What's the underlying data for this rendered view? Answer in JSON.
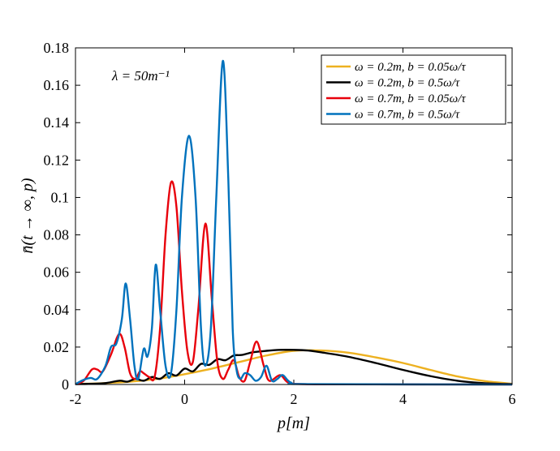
{
  "chart_data": {
    "type": "line",
    "title": "",
    "xlabel": "p[m]",
    "ylabel": "n̄(t → ∞, p)",
    "xlim": [
      -2,
      6
    ],
    "ylim": [
      0,
      0.18
    ],
    "xticks": [
      -2,
      0,
      2,
      4,
      6
    ],
    "xtick_labels": [
      "-2",
      "0",
      "2",
      "4",
      "6"
    ],
    "yticks": [
      0,
      0.02,
      0.04,
      0.06,
      0.08,
      0.1,
      0.12,
      0.14,
      0.16,
      0.18
    ],
    "ytick_labels": [
      "0",
      "0.02",
      "0.04",
      "0.06",
      "0.08",
      "0.1",
      "0.12",
      "0.14",
      "0.16",
      "0.18"
    ],
    "grid": false,
    "legend_position": "top-right",
    "annotation": "λ = 50m⁻¹",
    "series": [
      {
        "name": "ω = 0.2m, b = 0.05ω/τ",
        "color": "#EDB120",
        "points": [
          [
            -2,
            0.0003
          ],
          [
            -1.5,
            0.0007
          ],
          [
            -1,
            0.0015
          ],
          [
            -0.5,
            0.003
          ],
          [
            0,
            0.0055
          ],
          [
            0.5,
            0.0085
          ],
          [
            1,
            0.012
          ],
          [
            1.5,
            0.0155
          ],
          [
            2,
            0.018
          ],
          [
            2.5,
            0.0182
          ],
          [
            3,
            0.017
          ],
          [
            3.5,
            0.0145
          ],
          [
            4,
            0.0115
          ],
          [
            4.5,
            0.0078
          ],
          [
            5,
            0.0043
          ],
          [
            5.5,
            0.0018
          ],
          [
            6,
            0.0004
          ]
        ]
      },
      {
        "name": "ω = 0.2m, b = 0.5ω/τ",
        "color": "#000000",
        "points": [
          [
            -2,
            0.0002
          ],
          [
            -1.5,
            0.0006
          ],
          [
            -1.2,
            0.002
          ],
          [
            -1.05,
            0.0015
          ],
          [
            -0.9,
            0.003
          ],
          [
            -0.75,
            0.002
          ],
          [
            -0.6,
            0.004
          ],
          [
            -0.45,
            0.003
          ],
          [
            -0.3,
            0.006
          ],
          [
            -0.15,
            0.0048
          ],
          [
            0,
            0.0085
          ],
          [
            0.15,
            0.007
          ],
          [
            0.3,
            0.011
          ],
          [
            0.45,
            0.0105
          ],
          [
            0.6,
            0.0135
          ],
          [
            0.75,
            0.013
          ],
          [
            0.9,
            0.0155
          ],
          [
            1.05,
            0.0158
          ],
          [
            1.25,
            0.0172
          ],
          [
            1.5,
            0.018
          ],
          [
            1.75,
            0.0185
          ],
          [
            2,
            0.0185
          ],
          [
            2.25,
            0.0182
          ],
          [
            2.5,
            0.0172
          ],
          [
            3,
            0.0148
          ],
          [
            3.5,
            0.0115
          ],
          [
            4,
            0.0078
          ],
          [
            4.5,
            0.0045
          ],
          [
            5,
            0.002
          ],
          [
            5.5,
            0.0007
          ],
          [
            6,
            0.0002
          ]
        ]
      },
      {
        "name": "ω = 0.7m, b = 0.05ω/τ",
        "color": "#E8000B",
        "points": [
          [
            -2,
            0.0002
          ],
          [
            -1.85,
            0.002
          ],
          [
            -1.7,
            0.008
          ],
          [
            -1.6,
            0.008
          ],
          [
            -1.5,
            0.007
          ],
          [
            -1.35,
            0.016
          ],
          [
            -1.2,
            0.027
          ],
          [
            -1.1,
            0.02
          ],
          [
            -1.0,
            0.006
          ],
          [
            -0.9,
            0.003
          ],
          [
            -0.82,
            0.007
          ],
          [
            -0.75,
            0.006
          ],
          [
            -0.65,
            0.004
          ],
          [
            -0.55,
            0.004
          ],
          [
            -0.45,
            0.03
          ],
          [
            -0.35,
            0.08
          ],
          [
            -0.25,
            0.108
          ],
          [
            -0.15,
            0.095
          ],
          [
            -0.05,
            0.05
          ],
          [
            0.05,
            0.018
          ],
          [
            0.15,
            0.012
          ],
          [
            0.25,
            0.04
          ],
          [
            0.38,
            0.086
          ],
          [
            0.5,
            0.045
          ],
          [
            0.6,
            0.012
          ],
          [
            0.7,
            0.003
          ],
          [
            0.8,
            0.008
          ],
          [
            0.9,
            0.013
          ],
          [
            1.0,
            0.004
          ],
          [
            1.1,
            0.002
          ],
          [
            1.2,
            0.012
          ],
          [
            1.32,
            0.023
          ],
          [
            1.45,
            0.01
          ],
          [
            1.55,
            0.002
          ],
          [
            1.75,
            0.005
          ],
          [
            1.9,
            0.001
          ],
          [
            2.2,
            0.0002
          ],
          [
            3,
            0.0001
          ],
          [
            6,
            0.0
          ]
        ]
      },
      {
        "name": "ω = 0.7m, b = 0.5ω/τ",
        "color": "#0072BD",
        "points": [
          [
            -2,
            0.0002
          ],
          [
            -1.85,
            0.0025
          ],
          [
            -1.72,
            0.0035
          ],
          [
            -1.6,
            0.003
          ],
          [
            -1.45,
            0.01
          ],
          [
            -1.35,
            0.02
          ],
          [
            -1.25,
            0.022
          ],
          [
            -1.15,
            0.035
          ],
          [
            -1.08,
            0.054
          ],
          [
            -1.0,
            0.035
          ],
          [
            -0.92,
            0.01
          ],
          [
            -0.85,
            0.003
          ],
          [
            -0.75,
            0.019
          ],
          [
            -0.68,
            0.015
          ],
          [
            -0.6,
            0.03
          ],
          [
            -0.53,
            0.064
          ],
          [
            -0.45,
            0.04
          ],
          [
            -0.35,
            0.01
          ],
          [
            -0.25,
            0.006
          ],
          [
            -0.15,
            0.04
          ],
          [
            -0.05,
            0.1
          ],
          [
            0.08,
            0.133
          ],
          [
            0.2,
            0.1
          ],
          [
            0.3,
            0.03
          ],
          [
            0.38,
            0.01
          ],
          [
            0.48,
            0.03
          ],
          [
            0.58,
            0.1
          ],
          [
            0.7,
            0.173
          ],
          [
            0.8,
            0.11
          ],
          [
            0.88,
            0.03
          ],
          [
            0.95,
            0.008
          ],
          [
            1.02,
            0.003
          ],
          [
            1.1,
            0.006
          ],
          [
            1.2,
            0.005
          ],
          [
            1.3,
            0.002
          ],
          [
            1.4,
            0.004
          ],
          [
            1.5,
            0.01
          ],
          [
            1.6,
            0.002
          ],
          [
            1.7,
            0.003
          ],
          [
            1.8,
            0.005
          ],
          [
            1.95,
            0.001
          ],
          [
            2.3,
            0.0002
          ],
          [
            6,
            0.0
          ]
        ]
      }
    ]
  }
}
